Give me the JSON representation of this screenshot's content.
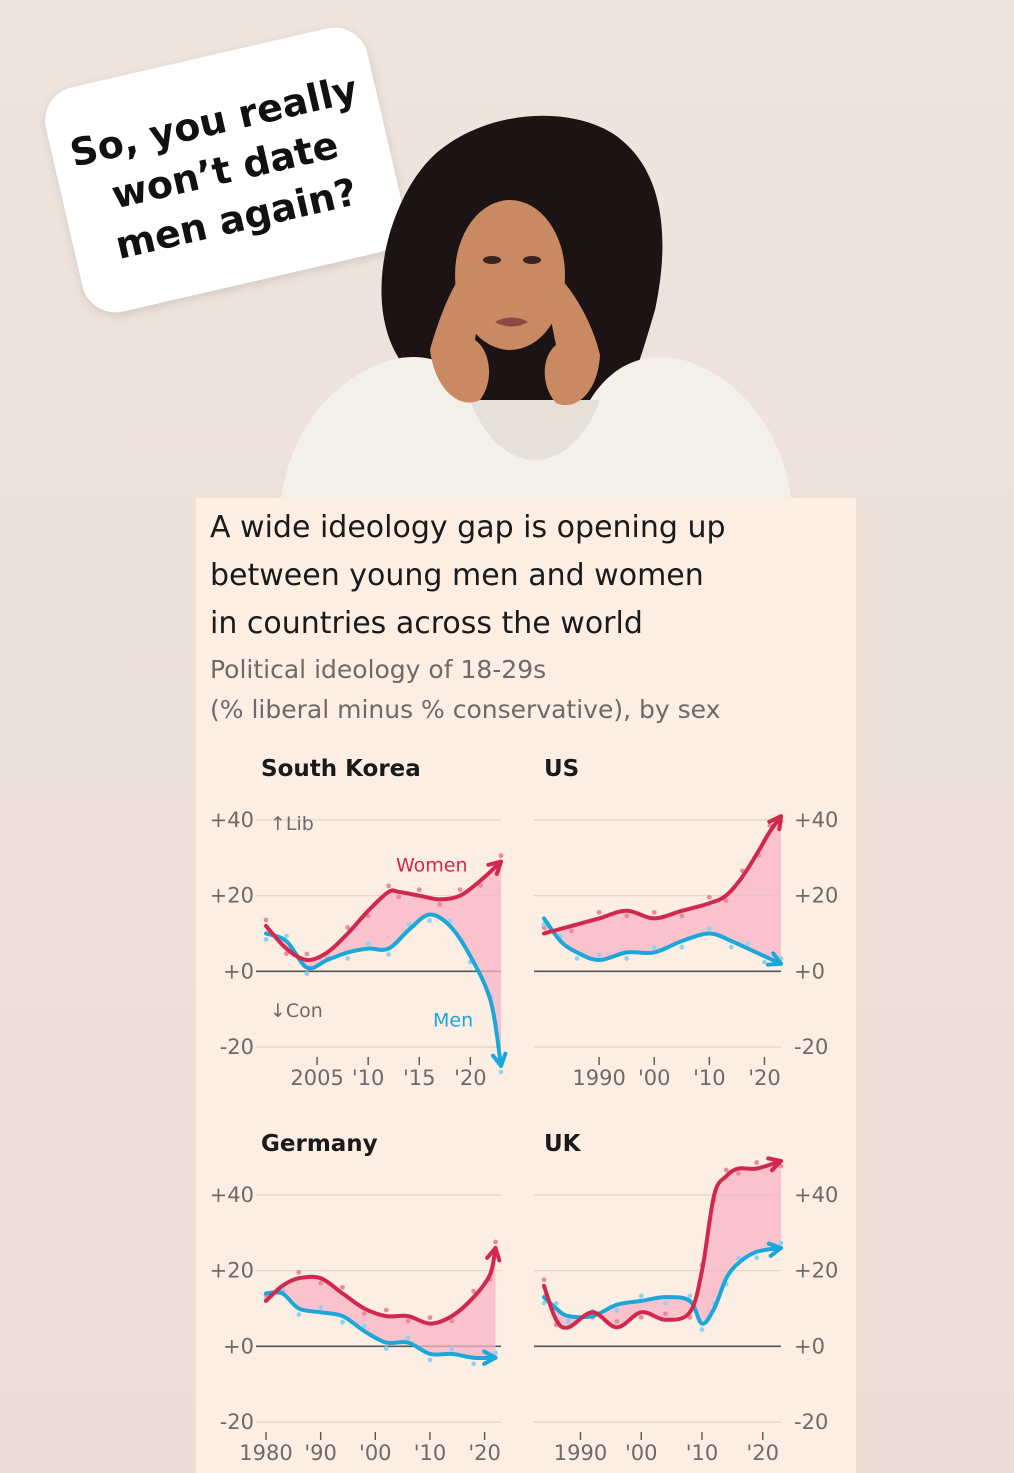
{
  "bubble": {
    "lines": [
      "So, you really",
      "won’t date",
      "men again?"
    ]
  },
  "card": {
    "title_lines": [
      "A wide ideology gap is opening up",
      "between young men and women",
      "in countries across the world"
    ],
    "subtitle_lines": [
      "Political ideology of 18-29s",
      "(% liberal minus % conservative), by sex"
    ]
  },
  "colors": {
    "women": "#d0294d",
    "men": "#1ba7d9",
    "gap_fill": "#f7b3c6",
    "background": "#fdeee4"
  },
  "chart_data": [
    {
      "type": "line",
      "title": "South Korea",
      "ylim": [
        -20,
        40
      ],
      "yticks": [
        "+40",
        "+20",
        "+0",
        "-20"
      ],
      "axis_side": "left",
      "xlim": [
        2000,
        2023
      ],
      "xtick_values": [
        2005,
        2010,
        2015,
        2020
      ],
      "xtick_labels": [
        "2005",
        "'10",
        "'15",
        "'20"
      ],
      "annotations": {
        "lib": "↑Lib",
        "con": "↓Con"
      },
      "series": [
        {
          "name": "Women",
          "label": "Women",
          "x": [
            2000,
            2002,
            2004,
            2006,
            2008,
            2010,
            2012,
            2013,
            2015,
            2017,
            2019,
            2021,
            2023
          ],
          "values": [
            12,
            6,
            3,
            5,
            10,
            16,
            21,
            21,
            20,
            19,
            20,
            24,
            29
          ]
        },
        {
          "name": "Men",
          "label": "Men",
          "x": [
            2000,
            2002,
            2004,
            2006,
            2008,
            2010,
            2012,
            2014,
            2016,
            2018,
            2020,
            2022,
            2023
          ],
          "values": [
            10,
            8,
            1,
            3,
            5,
            6,
            6,
            11,
            15,
            12,
            4,
            -8,
            -25
          ]
        }
      ]
    },
    {
      "type": "line",
      "title": "US",
      "ylim": [
        -20,
        40
      ],
      "yticks": [
        "+40",
        "+20",
        "+0",
        "-20"
      ],
      "axis_side": "right",
      "xlim": [
        1980,
        2023
      ],
      "xtick_values": [
        1990,
        2000,
        2010,
        2020
      ],
      "xtick_labels": [
        "1990",
        "'00",
        "'10",
        "'20"
      ],
      "series": [
        {
          "name": "Women",
          "x": [
            1980,
            1985,
            1990,
            1995,
            2000,
            2005,
            2010,
            2013,
            2016,
            2019,
            2021,
            2023
          ],
          "values": [
            10,
            12,
            14,
            16,
            14,
            16,
            18,
            20,
            25,
            32,
            37,
            41
          ]
        },
        {
          "name": "Men",
          "x": [
            1980,
            1983,
            1986,
            1990,
            1995,
            2000,
            2005,
            2010,
            2014,
            2017,
            2020,
            2023
          ],
          "values": [
            14,
            8,
            5,
            3,
            5,
            5,
            8,
            10,
            8,
            6,
            4,
            2
          ]
        }
      ]
    },
    {
      "type": "line",
      "title": "Germany",
      "ylim": [
        -20,
        40
      ],
      "yticks": [
        "+40",
        "+20",
        "+0",
        "-20"
      ],
      "axis_side": "left",
      "xlim": [
        1980,
        2023
      ],
      "xtick_values": [
        1980,
        1990,
        2000,
        2010,
        2020
      ],
      "xtick_labels": [
        "1980",
        "'90",
        "'00",
        "'10",
        "'20"
      ],
      "series": [
        {
          "name": "Women",
          "x": [
            1980,
            1983,
            1986,
            1990,
            1994,
            1998,
            2002,
            2006,
            2010,
            2014,
            2018,
            2021,
            2022
          ],
          "values": [
            12,
            16,
            18,
            18,
            14,
            10,
            8,
            8,
            6,
            8,
            13,
            19,
            26
          ]
        },
        {
          "name": "Men",
          "x": [
            1980,
            1983,
            1986,
            1990,
            1994,
            1998,
            2002,
            2006,
            2010,
            2014,
            2018,
            2022
          ],
          "values": [
            14,
            14,
            10,
            9,
            8,
            4,
            1,
            1,
            -2,
            -2,
            -3,
            -3
          ]
        }
      ]
    },
    {
      "type": "line",
      "title": "UK",
      "ylim": [
        -20,
        40
      ],
      "yticks": [
        "+40",
        "+20",
        "+0",
        "-20"
      ],
      "axis_side": "right",
      "xlim": [
        1984,
        2023
      ],
      "xtick_values": [
        1990,
        2000,
        2010,
        2020
      ],
      "xtick_labels": [
        "1990",
        "'00",
        "'10",
        "'20"
      ],
      "series": [
        {
          "name": "Women",
          "x": [
            1984,
            1986,
            1988,
            1992,
            1996,
            2000,
            2004,
            2008,
            2010,
            2012,
            2014,
            2016,
            2019,
            2023
          ],
          "values": [
            16,
            7,
            5,
            9,
            5,
            9,
            7,
            9,
            20,
            40,
            45,
            47,
            47,
            49
          ]
        },
        {
          "name": "Men",
          "x": [
            1984,
            1986,
            1988,
            1992,
            1996,
            2000,
            2004,
            2008,
            2010,
            2012,
            2014,
            2016,
            2019,
            2023
          ],
          "values": [
            13,
            10,
            8,
            8,
            11,
            12,
            13,
            12,
            6,
            10,
            18,
            22,
            25,
            26
          ]
        }
      ]
    }
  ]
}
